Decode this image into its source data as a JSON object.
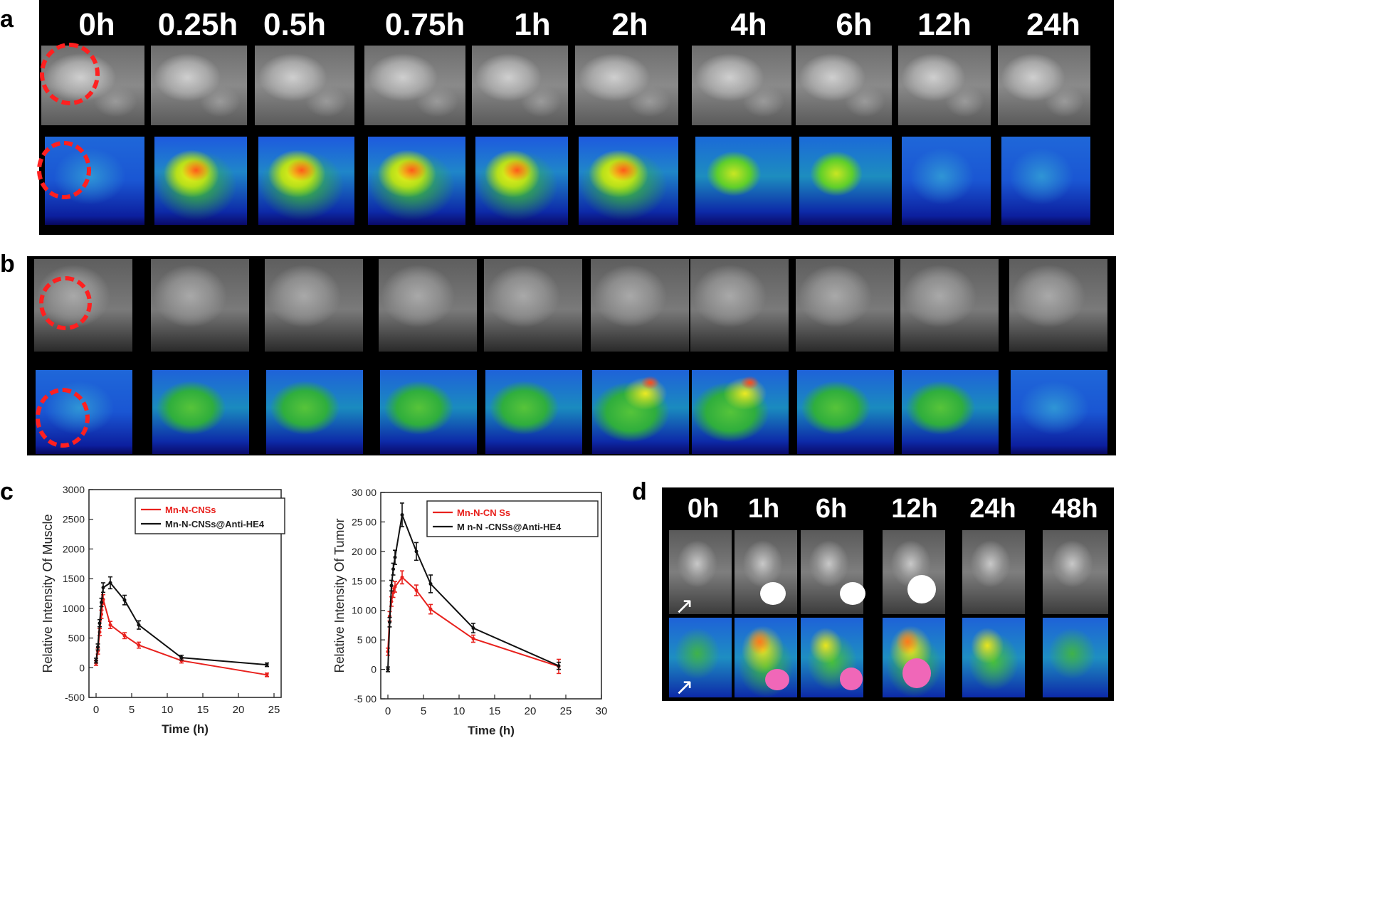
{
  "panels": {
    "a": {
      "letter": "a",
      "time_labels": [
        "0h",
        "0.25h",
        "0.5h",
        "0.75h",
        "1h",
        "2h",
        "4h",
        "6h",
        "12h",
        "24h"
      ]
    },
    "b": {
      "letter": "b"
    },
    "c": {
      "letter": "c"
    },
    "d": {
      "letter": "d",
      "time_labels": [
        "0h",
        "1h",
        "6h",
        "12h",
        "24h",
        "48h"
      ]
    }
  },
  "chart_data": [
    {
      "type": "line",
      "panel": "c-left",
      "xlabel": "Time (h)",
      "ylabel": "Relative Intensity Of Muscle",
      "xlim": [
        -1,
        26
      ],
      "ylim": [
        -500,
        3000
      ],
      "xticks": [
        "0",
        "5",
        "10",
        "15",
        "20",
        "25"
      ],
      "yticks": [
        "-500",
        "0",
        "500",
        "1000",
        "1500",
        "2000",
        "2500",
        "3000"
      ],
      "legend_position": "top-right",
      "series": [
        {
          "name": "Mn-N-CNSs",
          "color": "#e8211d",
          "x": [
            0,
            0.25,
            0.5,
            0.75,
            1,
            2,
            4,
            6,
            12,
            24
          ],
          "y": [
            80,
            280,
            600,
            900,
            1150,
            720,
            540,
            380,
            120,
            -120
          ],
          "err": [
            40,
            50,
            60,
            70,
            80,
            60,
            50,
            50,
            40,
            30
          ]
        },
        {
          "name": "Mn-N-CNSs@Anti-HE4",
          "color": "#111111",
          "x": [
            0,
            0.25,
            0.5,
            0.75,
            1,
            2,
            4,
            6,
            12,
            24
          ],
          "y": [
            120,
            350,
            750,
            1100,
            1350,
            1430,
            1140,
            720,
            170,
            50
          ],
          "err": [
            40,
            50,
            60,
            70,
            80,
            100,
            80,
            70,
            40,
            30
          ]
        }
      ]
    },
    {
      "type": "line",
      "panel": "c-right",
      "xlabel": "Time (h)",
      "ylabel": "Relative Intensity Of Tumor",
      "xlim": [
        -1,
        30
      ],
      "ylim": [
        -500,
        3000
      ],
      "xticks": [
        "0",
        "5",
        "10",
        "15",
        "20",
        "25",
        "30"
      ],
      "yticks": [
        "-5 00",
        "0",
        "5 00",
        "10 00",
        "15 00",
        "20 00",
        "25 00",
        "30 00"
      ],
      "legend_position": "top-right",
      "legend_labels": [
        "Mn-N-CN Ss",
        "M n-N -CNSs@Anti-HE4"
      ],
      "series": [
        {
          "name": "Mn-N-CN Ss",
          "color": "#e8211d",
          "x": [
            0,
            0.25,
            0.5,
            0.75,
            1,
            2,
            4,
            6,
            12,
            24
          ],
          "y": [
            300,
            900,
            1150,
            1300,
            1400,
            1560,
            1340,
            1020,
            520,
            50
          ],
          "err": [
            60,
            80,
            80,
            80,
            90,
            110,
            90,
            80,
            60,
            120
          ]
        },
        {
          "name": "M n-N -CNSs@Anti-HE4",
          "color": "#111111",
          "x": [
            0,
            0.25,
            0.5,
            0.75,
            1,
            2,
            4,
            6,
            12,
            24
          ],
          "y": [
            0,
            800,
            1420,
            1700,
            1900,
            2620,
            2000,
            1450,
            700,
            60
          ],
          "err": [
            40,
            80,
            90,
            100,
            120,
            200,
            150,
            150,
            80,
            60
          ]
        }
      ]
    }
  ],
  "colors": {
    "red_circle": "#ff2020",
    "pink_tumor": "#f067b8"
  }
}
